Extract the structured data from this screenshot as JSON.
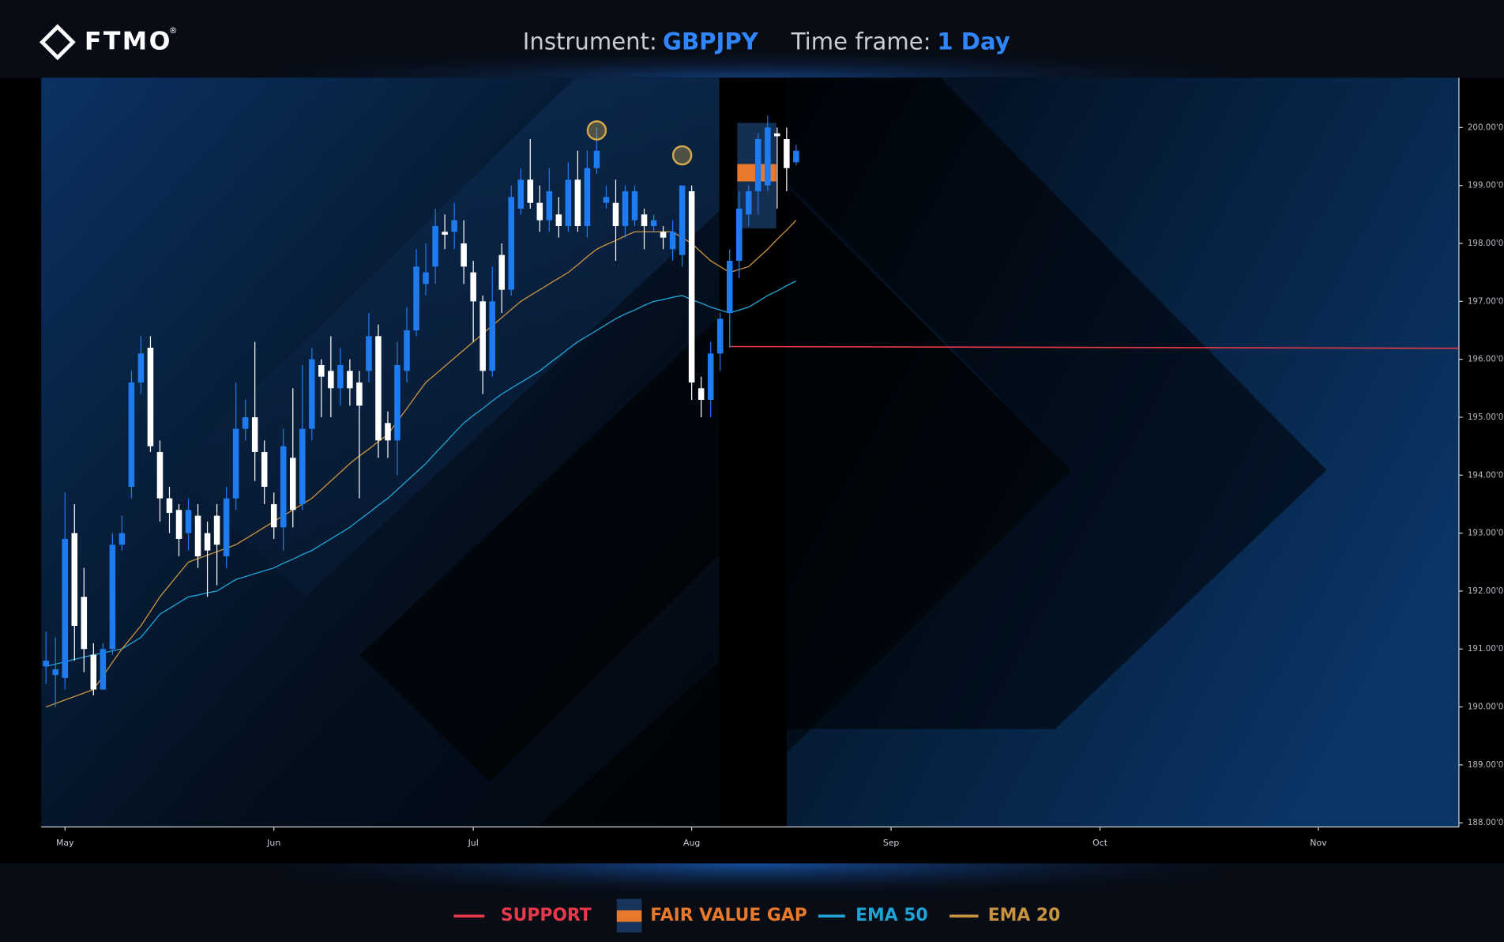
{
  "logo": {
    "text": "FTMO",
    "mark": "®"
  },
  "header": {
    "instrument_label": "Instrument:",
    "instrument": "GBPJPY",
    "timeframe_label": "Time frame:",
    "timeframe": "1 Day"
  },
  "chart_data": {
    "type": "candlestick",
    "categories": [
      null,
      null,
      null,
      null,
      null,
      null,
      null,
      null,
      null,
      null,
      null,
      null,
      null,
      null,
      null,
      null,
      null,
      null,
      null,
      null,
      null,
      null,
      null,
      null,
      null,
      null,
      null,
      null,
      null,
      null,
      null,
      null,
      null,
      null,
      null,
      null,
      null,
      null,
      null,
      null,
      null,
      null,
      null,
      null,
      null,
      null,
      null,
      null,
      null,
      null,
      null,
      null,
      null,
      null,
      null,
      null,
      null,
      null,
      null,
      null,
      null,
      null,
      null,
      null,
      null,
      null,
      null,
      null,
      null,
      null,
      null,
      null,
      null,
      null,
      null,
      null,
      null,
      null,
      null,
      null
    ],
    "open": [
      190.7,
      190.55,
      190.5,
      193.0,
      191.9,
      190.9,
      190.3,
      191.0,
      192.8,
      193.8,
      195.6,
      196.2,
      194.4,
      193.6,
      193.4,
      193.0,
      193.3,
      193.0,
      193.3,
      192.6,
      193.6,
      194.8,
      195.0,
      194.4,
      193.5,
      193.1,
      194.3,
      193.5,
      194.8,
      195.9,
      195.8,
      195.5,
      195.8,
      195.6,
      195.8,
      196.4,
      194.9,
      194.6,
      195.8,
      196.5,
      197.3,
      197.6,
      198.2,
      198.2,
      198.0,
      197.5,
      197.0,
      195.8,
      197.8,
      197.2,
      198.6,
      199.1,
      198.7,
      198.4,
      198.5,
      198.3,
      199.1,
      198.3,
      199.3,
      198.7,
      198.7,
      198.3,
      198.4,
      198.5,
      198.3,
      198.2,
      197.9,
      197.8,
      198.9,
      195.5,
      195.3,
      196.1,
      196.8,
      197.7,
      198.5,
      198.9,
      199.0,
      199.9,
      199.8,
      199.4
    ],
    "high": [
      191.3,
      191.2,
      193.7,
      193.5,
      192.4,
      191.1,
      191.1,
      193.0,
      193.3,
      195.8,
      196.4,
      196.4,
      194.6,
      193.8,
      193.5,
      193.6,
      193.5,
      193.2,
      193.5,
      193.8,
      195.6,
      195.3,
      196.3,
      194.6,
      193.7,
      194.8,
      195.5,
      195.9,
      196.2,
      196.0,
      196.4,
      196.2,
      196.0,
      195.8,
      196.8,
      196.6,
      195.1,
      196.3,
      196.9,
      197.9,
      198.0,
      198.6,
      198.5,
      198.7,
      198.4,
      197.7,
      197.1,
      197.6,
      198.0,
      199.0,
      199.3,
      199.8,
      199.0,
      199.3,
      198.8,
      199.4,
      199.6,
      199.6,
      200.0,
      199.0,
      199.1,
      199.0,
      199.0,
      198.6,
      198.5,
      198.3,
      198.4,
      199.0,
      199.0,
      195.7,
      196.3,
      196.8,
      197.9,
      198.9,
      199.0,
      199.9,
      200.2,
      200.0,
      200.0,
      199.7
    ],
    "low": [
      190.4,
      190.0,
      190.3,
      190.8,
      190.6,
      190.2,
      190.3,
      190.9,
      192.7,
      193.6,
      195.4,
      194.4,
      193.2,
      193.0,
      192.6,
      192.7,
      192.4,
      191.9,
      192.1,
      192.4,
      193.4,
      194.6,
      193.9,
      193.5,
      192.9,
      192.7,
      193.1,
      193.4,
      194.6,
      195.0,
      195.0,
      195.2,
      195.2,
      193.6,
      195.6,
      194.3,
      194.3,
      194.0,
      195.6,
      196.4,
      197.1,
      197.3,
      197.9,
      197.9,
      197.3,
      196.3,
      195.4,
      195.7,
      196.8,
      197.1,
      198.5,
      198.6,
      198.2,
      198.2,
      198.1,
      198.2,
      198.2,
      198.1,
      199.2,
      198.6,
      197.7,
      198.1,
      198.3,
      197.9,
      198.2,
      197.9,
      197.7,
      197.6,
      195.3,
      195.0,
      195.0,
      195.8,
      196.2,
      197.4,
      198.3,
      198.5,
      198.9,
      198.6,
      198.9,
      199.35
    ],
    "close": [
      190.8,
      190.65,
      192.9,
      191.4,
      191.0,
      190.3,
      191.0,
      192.8,
      193.0,
      195.6,
      196.1,
      194.5,
      193.6,
      193.35,
      192.9,
      193.4,
      192.6,
      192.7,
      192.8,
      193.6,
      194.8,
      195.0,
      194.4,
      193.8,
      193.1,
      194.5,
      193.4,
      194.8,
      196.0,
      195.7,
      195.5,
      195.9,
      195.5,
      195.2,
      196.4,
      194.6,
      194.6,
      195.9,
      196.5,
      197.6,
      197.5,
      198.3,
      198.15,
      198.4,
      197.6,
      197.0,
      195.8,
      197.0,
      197.2,
      198.8,
      199.1,
      198.7,
      198.4,
      198.9,
      198.3,
      199.1,
      198.3,
      199.3,
      199.6,
      198.8,
      198.3,
      198.9,
      198.9,
      198.3,
      198.4,
      198.1,
      198.2,
      199.0,
      195.6,
      195.3,
      196.1,
      196.7,
      197.7,
      198.6,
      198.9,
      199.8,
      200.0,
      199.85,
      199.3,
      199.6
    ],
    "up_color": "#1e7bf0",
    "down_color": "#ffffff",
    "series": [
      {
        "name": "EMA 50",
        "color": "#1fa3d6",
        "values": [
          190.7,
          190.74,
          190.78,
          190.82,
          190.86,
          190.9,
          190.93,
          190.97,
          191.0,
          191.1,
          191.2,
          191.4,
          191.6,
          191.7,
          191.8,
          191.9,
          191.93,
          191.97,
          192.0,
          192.1,
          192.2,
          192.25,
          192.3,
          192.35,
          192.4,
          192.48,
          192.55,
          192.63,
          192.7,
          192.8,
          192.9,
          193.0,
          193.1,
          193.23,
          193.35,
          193.48,
          193.6,
          193.75,
          193.9,
          194.05,
          194.2,
          194.38,
          194.55,
          194.73,
          194.9,
          195.03,
          195.15,
          195.28,
          195.4,
          195.5,
          195.6,
          195.7,
          195.8,
          195.93,
          196.05,
          196.18,
          196.3,
          196.4,
          196.5,
          196.6,
          196.7,
          196.78,
          196.85,
          196.93,
          197.0,
          197.03,
          197.07,
          197.1,
          197.03,
          196.97,
          196.9,
          196.85,
          196.8,
          196.85,
          196.9,
          197.0,
          197.1,
          197.18,
          197.27,
          197.35
        ]
      },
      {
        "name": "EMA 20",
        "color": "#c8933f",
        "values": [
          190.0,
          190.06,
          190.12,
          190.18,
          190.24,
          190.3,
          190.53,
          190.77,
          191.0,
          191.2,
          191.4,
          191.65,
          191.9,
          192.1,
          192.3,
          192.5,
          192.56,
          192.62,
          192.68,
          192.74,
          192.8,
          192.9,
          193.0,
          193.1,
          193.2,
          193.3,
          193.4,
          193.5,
          193.6,
          193.75,
          193.9,
          194.05,
          194.2,
          194.33,
          194.45,
          194.58,
          194.7,
          194.93,
          195.15,
          195.38,
          195.6,
          195.74,
          195.88,
          196.02,
          196.16,
          196.3,
          196.44,
          196.58,
          196.72,
          196.86,
          197.0,
          197.1,
          197.2,
          197.3,
          197.4,
          197.5,
          197.63,
          197.77,
          197.9,
          197.98,
          198.05,
          198.13,
          198.2,
          198.2,
          198.2,
          198.2,
          198.2,
          198.1,
          198.0,
          197.85,
          197.7,
          197.6,
          197.5,
          197.55,
          197.6,
          197.75,
          197.9,
          198.07,
          198.23,
          198.4
        ]
      }
    ],
    "support": {
      "name": "SUPPORT",
      "color": "#e8394a",
      "x": [
        72,
        148.8
      ],
      "values": [
        196.22,
        196.19
      ]
    },
    "fair_value_gap": {
      "name": "FAIR VALUE GAP",
      "color": "#e8782a",
      "zone_color": "#17345c",
      "x": [
        72.8,
        76.9
      ],
      "zone": [
        198.26,
        200.08
      ],
      "gap": [
        199.07,
        199.37
      ]
    },
    "swing_highs": {
      "color": "#d4a94a",
      "x": [
        58,
        67
      ],
      "values": [
        199.95,
        199.52
      ]
    },
    "xlim": [
      -0.5,
      148.8
    ],
    "xticks": [
      {
        "value": 2,
        "label": "May"
      },
      {
        "value": 24,
        "label": "Jun"
      },
      {
        "value": 45,
        "label": "Jul"
      },
      {
        "value": 68,
        "label": "Aug"
      },
      {
        "value": 89,
        "label": "Sep"
      },
      {
        "value": 111,
        "label": "Oct"
      },
      {
        "value": 134,
        "label": "Nov"
      }
    ],
    "ylim": [
      187.93,
      200.86
    ],
    "yticks": [
      {
        "value": 188,
        "label": "188.00'0"
      },
      {
        "value": 189,
        "label": "189.00'0"
      },
      {
        "value": 190,
        "label": "190.00'0"
      },
      {
        "value": 191,
        "label": "191.00'0"
      },
      {
        "value": 192,
        "label": "192.00'0"
      },
      {
        "value": 193,
        "label": "193.00'0"
      },
      {
        "value": 194,
        "label": "194.00'0"
      },
      {
        "value": 195,
        "label": "195.00'0"
      },
      {
        "value": 196,
        "label": "196.00'0"
      },
      {
        "value": 197,
        "label": "197.00'0"
      },
      {
        "value": 198,
        "label": "198.00'0"
      },
      {
        "value": 199,
        "label": "199.00'0"
      },
      {
        "value": 200,
        "label": "200.00'0"
      }
    ]
  }
}
